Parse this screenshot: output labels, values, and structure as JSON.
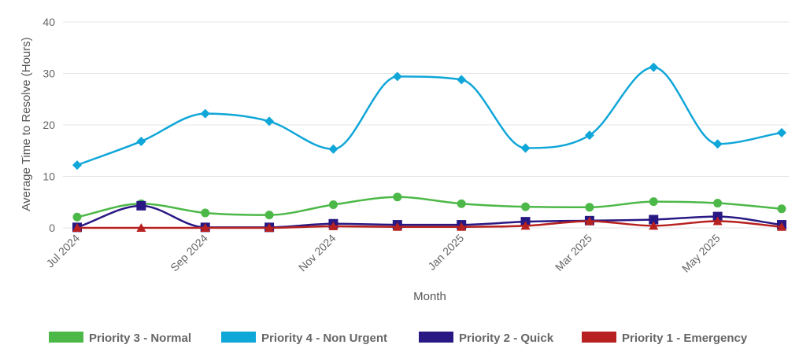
{
  "chart_data": {
    "type": "line",
    "title": "",
    "xlabel": "Month",
    "ylabel": "Average Time to Resolve (Hours)",
    "ylim": [
      0,
      40
    ],
    "yticks": [
      0,
      10,
      20,
      30,
      40
    ],
    "grid": true,
    "legend_position": "bottom",
    "x_tick_labels": [
      "Jul 2024",
      "Sep 2024",
      "Nov 2024",
      "Jan 2025",
      "Mar 2025",
      "May 2025"
    ],
    "x_tick_indices": [
      0,
      2,
      4,
      6,
      8,
      10
    ],
    "categories": [
      "Jul 2024",
      "Aug 2024",
      "Sep 2024",
      "Oct 2024",
      "Nov 2024",
      "Dec 2024",
      "Jan 2025",
      "Feb 2025",
      "Mar 2025",
      "Apr 2025",
      "May 2025",
      "Jun 2025"
    ],
    "series": [
      {
        "name": "Priority 3 - Normal",
        "color": "#4cb847",
        "marker": "circle",
        "values": [
          2.1,
          4.7,
          2.9,
          2.5,
          4.5,
          6.0,
          4.7,
          4.1,
          4.0,
          5.1,
          4.8,
          3.7
        ]
      },
      {
        "name": "Priority 4 - Non Urgent",
        "color": "#0fa6d8",
        "marker": "diamond",
        "values": [
          12.2,
          16.8,
          22.2,
          20.7,
          15.3,
          29.4,
          28.8,
          15.5,
          18.0,
          31.2,
          16.3,
          18.5
        ]
      },
      {
        "name": "Priority 2 - Quick",
        "color": "#281883",
        "marker": "square",
        "values": [
          0.1,
          4.3,
          0.1,
          0.1,
          0.8,
          0.6,
          0.6,
          1.2,
          1.4,
          1.6,
          2.2,
          0.6
        ]
      },
      {
        "name": "Priority 1 - Emergency",
        "color": "#b7211f",
        "marker": "triangle",
        "values": [
          0.0,
          0.0,
          0.0,
          0.0,
          0.3,
          0.2,
          0.2,
          0.4,
          1.3,
          0.4,
          1.3,
          0.2
        ]
      }
    ]
  }
}
